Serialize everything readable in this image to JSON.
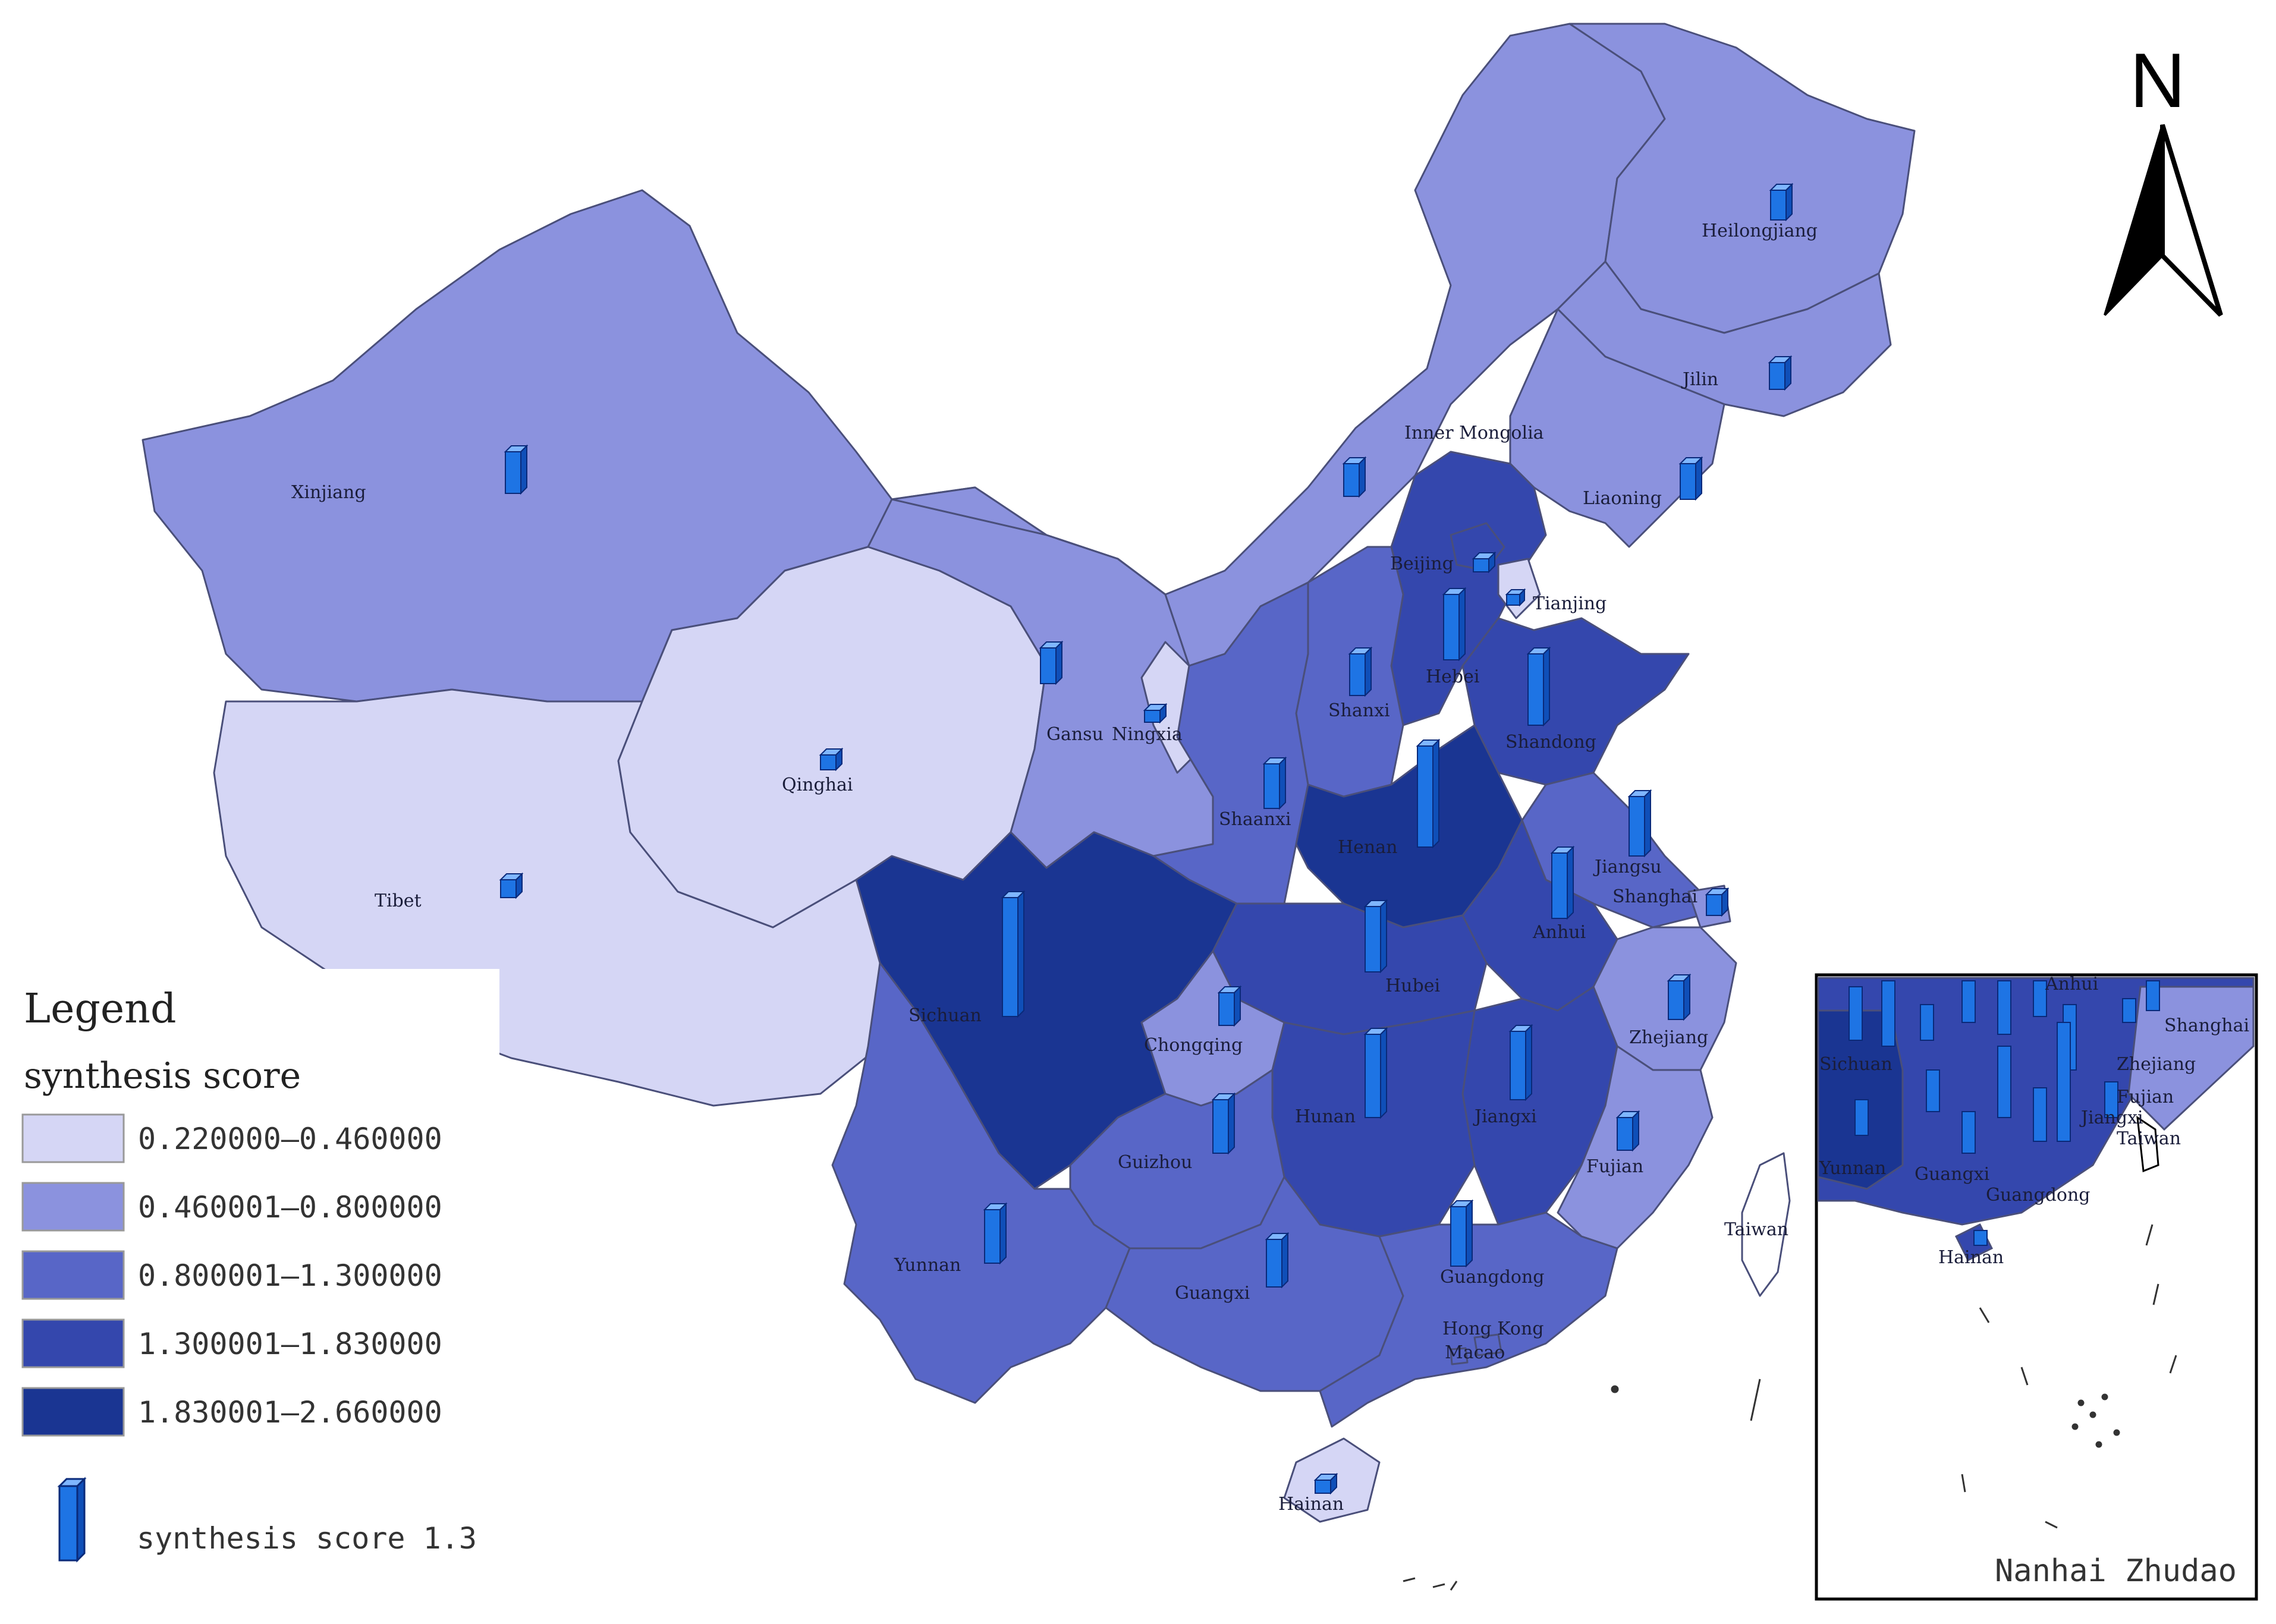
{
  "legend": {
    "title": "Legend",
    "subtitle": "synthesis score",
    "classes": [
      {
        "range": "0.220000—0.460000",
        "color": "#d5d6f5"
      },
      {
        "range": "0.460001—0.800000",
        "color": "#8b92de"
      },
      {
        "range": "0.800001—1.300000",
        "color": "#5866c7"
      },
      {
        "range": "1.300001—1.830000",
        "color": "#3447ad"
      },
      {
        "range": "1.830001—2.660000",
        "color": "#1a3592"
      }
    ],
    "bar_label": "synthesis score 1.3",
    "bar_color": "#1e74e4"
  },
  "north_arrow": {
    "label": "N"
  },
  "inset": {
    "title": "Nanhai Zhudao",
    "labels": [
      "Sichuan",
      "Yunnan",
      "Guangxi",
      "Guangdong",
      "Hainan",
      "Shanghai",
      "Zhejiang",
      "Fujian",
      "Jiangxi",
      "Taiwan",
      "Anhui"
    ]
  },
  "provinces": [
    {
      "name": "Heilongjiang",
      "class": 1
    },
    {
      "name": "Jilin",
      "class": 1
    },
    {
      "name": "Liaoning",
      "class": 1
    },
    {
      "name": "Inner Mongolia",
      "class": 1
    },
    {
      "name": "Xinjiang",
      "class": 1
    },
    {
      "name": "Tibet",
      "class": 0
    },
    {
      "name": "Qinghai",
      "class": 0
    },
    {
      "name": "Gansu",
      "class": 1
    },
    {
      "name": "Ningxia",
      "class": 0
    },
    {
      "name": "Beijing",
      "class": 3
    },
    {
      "name": "Tianjing",
      "class": 0
    },
    {
      "name": "Hebei",
      "class": 3
    },
    {
      "name": "Shanxi",
      "class": 2
    },
    {
      "name": "Shandong",
      "class": 3
    },
    {
      "name": "Shaanxi",
      "class": 2
    },
    {
      "name": "Henan",
      "class": 4
    },
    {
      "name": "Jiangsu",
      "class": 2
    },
    {
      "name": "Shanghai",
      "class": 1
    },
    {
      "name": "Anhui",
      "class": 3
    },
    {
      "name": "Hubei",
      "class": 3
    },
    {
      "name": "Sichuan",
      "class": 4
    },
    {
      "name": "Chongqing",
      "class": 1
    },
    {
      "name": "Zhejiang",
      "class": 1
    },
    {
      "name": "Guizhou",
      "class": 2
    },
    {
      "name": "Hunan",
      "class": 3
    },
    {
      "name": "Jiangxi",
      "class": 3
    },
    {
      "name": "Fujian",
      "class": 1
    },
    {
      "name": "Yunnan",
      "class": 2
    },
    {
      "name": "Guangxi",
      "class": 2
    },
    {
      "name": "Guangdong",
      "class": 2
    },
    {
      "name": "Hong Kong",
      "class": 2
    },
    {
      "name": "Macao",
      "class": 2
    },
    {
      "name": "Taiwan",
      "class": -1
    },
    {
      "name": "Hainan",
      "class": 0
    }
  ]
}
